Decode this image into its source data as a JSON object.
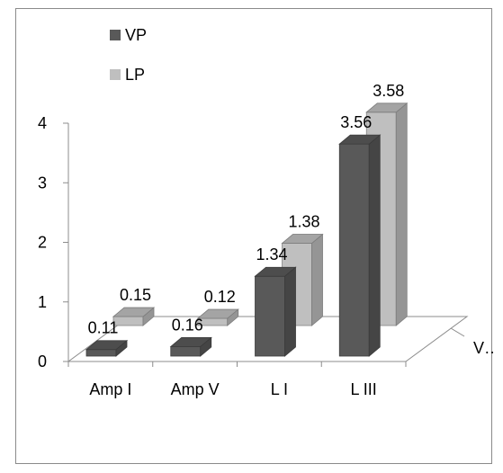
{
  "chart_data": {
    "type": "bar",
    "subtype": "3d-clustered-column",
    "categories": [
      "Amp I",
      "Amp V",
      "L I",
      "L III"
    ],
    "series": [
      {
        "name": "VP",
        "values": [
          0.11,
          0.16,
          1.34,
          3.56
        ],
        "labels": [
          "0.11",
          "0.16",
          "1.34",
          "3.56"
        ],
        "color": "#595959"
      },
      {
        "name": "LP",
        "values": [
          0.15,
          0.12,
          1.38,
          3.58
        ],
        "labels": [
          "0.15",
          "0.12",
          "1.38",
          "3.58"
        ],
        "color": "#bfbfbf"
      }
    ],
    "yticks": [
      "0",
      "1",
      "2",
      "3",
      "4"
    ],
    "ylim": [
      0,
      4
    ],
    "depth_axis_label": "V…",
    "legend_position": "top-left",
    "grid": false
  }
}
